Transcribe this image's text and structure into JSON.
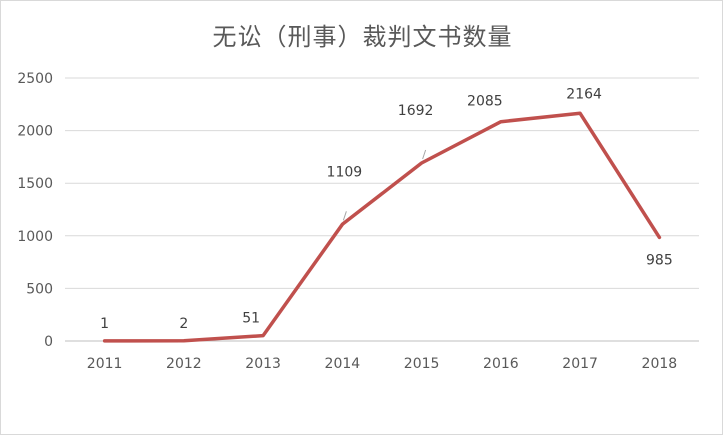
{
  "chart_data": {
    "type": "line",
    "title": "无讼（刑事）裁判文书数量",
    "xlabel": "",
    "ylabel": "",
    "categories": [
      "2011",
      "2012",
      "2013",
      "2014",
      "2015",
      "2016",
      "2017",
      "2018"
    ],
    "series": [
      {
        "values": [
          1,
          2,
          51,
          1109,
          1692,
          2085,
          2164,
          985
        ],
        "color": "#c0504d"
      }
    ],
    "y_ticks": [
      0,
      500,
      1000,
      1500,
      2000,
      2500
    ],
    "ylim": [
      0,
      2500
    ],
    "grid": true,
    "legend": "none",
    "colors": {
      "gridline": "#d9d9d9",
      "axis": "#bfbfbf",
      "line": "#c0504d"
    }
  }
}
